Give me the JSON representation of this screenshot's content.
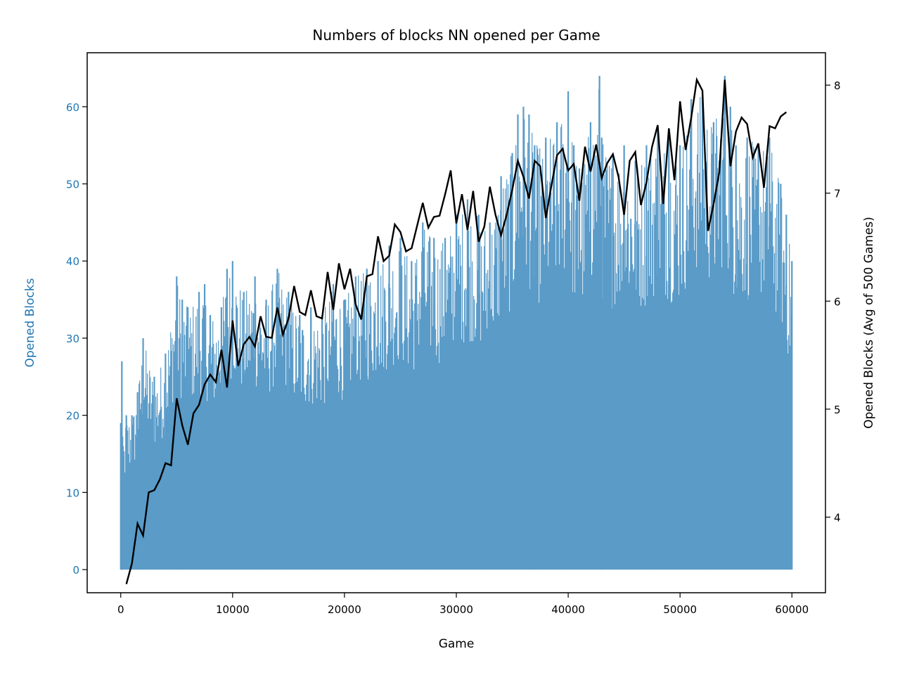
{
  "chart_data": {
    "type": "line",
    "title": "Numbers of blocks NN opened per Game",
    "xlabel": "Game",
    "ylabel_left": "Opened Blocks",
    "ylabel_right": "Opened Blocks (Avg of 500 Games)",
    "xlim": [
      -3000,
      63000
    ],
    "ylim_left": [
      -3,
      67
    ],
    "ylim_right": [
      3.3,
      8.3
    ],
    "xticks": [
      0,
      10000,
      20000,
      30000,
      40000,
      50000,
      60000
    ],
    "yticks_left": [
      0,
      10,
      20,
      30,
      40,
      50,
      60
    ],
    "yticks_right": [
      4,
      5,
      6,
      7,
      8
    ],
    "colors": {
      "per_game": "#1f77b4",
      "per_game_fill": "#5a9bc8",
      "average": "#000000",
      "left_axis_text": "#1f77b4"
    },
    "grid": false,
    "series": [
      {
        "axis": "left",
        "style": "dense-line",
        "note_values": "upper envelope of per-game opened blocks, min 0",
        "x": [
          0,
          100,
          200,
          500,
          1000,
          1500,
          2000,
          3000,
          4000,
          5000,
          5500,
          6000,
          7000,
          7500,
          8000,
          9000,
          9500,
          10000,
          11000,
          12000,
          13000,
          14000,
          15000,
          16000,
          17000,
          18000,
          19000,
          20000,
          21000,
          22000,
          23000,
          24000,
          25000,
          26000,
          27000,
          28000,
          29000,
          30000,
          31000,
          32000,
          33000,
          34000,
          35000,
          35500,
          36000,
          36500,
          37000,
          38000,
          39000,
          40000,
          40500,
          41000,
          42000,
          42800,
          43000,
          44000,
          45000,
          46000,
          47000,
          48000,
          49000,
          50000,
          51000,
          52000,
          53000,
          54000,
          54500,
          55000,
          56000,
          57000,
          58000,
          59000,
          59500,
          60000
        ],
        "values": [
          19,
          27,
          16,
          20,
          20,
          23,
          30,
          25,
          28,
          38,
          35,
          34,
          36,
          37,
          33,
          34,
          39,
          40,
          36,
          38,
          35,
          39,
          36,
          33,
          34,
          33,
          37,
          35,
          38,
          39,
          40,
          42,
          43,
          40,
          45,
          43,
          43,
          46,
          48,
          46,
          45,
          51,
          54,
          59,
          60,
          59,
          55,
          56,
          58,
          62,
          55,
          52,
          58,
          64,
          56,
          54,
          55,
          53,
          55,
          57,
          56,
          55,
          61,
          62,
          58,
          64,
          60,
          55,
          56,
          55,
          56,
          50,
          46,
          40
        ]
      },
      {
        "axis": "right",
        "name": "Opened Blocks (Avg of 500 Games)",
        "x": [
          500,
          1000,
          1500,
          2000,
          2500,
          3000,
          3500,
          4000,
          4500,
          5000,
          5500,
          6000,
          6500,
          7000,
          7500,
          8000,
          8500,
          9000,
          9500,
          10000,
          10500,
          11000,
          11500,
          12000,
          12500,
          13000,
          13500,
          14000,
          14500,
          15000,
          15500,
          16000,
          16500,
          17000,
          17500,
          18000,
          18500,
          19000,
          19500,
          20000,
          20500,
          21000,
          21500,
          22000,
          22500,
          23000,
          23500,
          24000,
          24500,
          25000,
          25500,
          26000,
          26500,
          27000,
          27500,
          28000,
          28500,
          29000,
          29500,
          30000,
          30500,
          31000,
          31500,
          32000,
          32500,
          33000,
          33500,
          34000,
          34500,
          35000,
          35500,
          36000,
          36500,
          37000,
          37500,
          38000,
          38500,
          39000,
          39500,
          40000,
          40500,
          41000,
          41500,
          42000,
          42500,
          43000,
          43500,
          44000,
          44500,
          45000,
          45500,
          46000,
          46500,
          47000,
          47500,
          48000,
          48500,
          49000,
          49500,
          50000,
          50500,
          51000,
          51500,
          52000,
          52500,
          53000,
          53500,
          54000,
          54500,
          55000,
          55500,
          56000,
          56500,
          57000,
          57500,
          58000,
          58500,
          59000,
          59500
        ],
        "values": [
          3.38,
          3.57,
          3.94,
          3.83,
          4.23,
          4.25,
          4.35,
          4.5,
          4.48,
          5.1,
          4.85,
          4.67,
          4.96,
          5.04,
          5.23,
          5.32,
          5.25,
          5.55,
          5.2,
          5.82,
          5.4,
          5.6,
          5.67,
          5.58,
          5.86,
          5.67,
          5.66,
          5.94,
          5.69,
          5.84,
          6.14,
          5.9,
          5.87,
          6.1,
          5.86,
          5.84,
          6.27,
          5.92,
          6.35,
          6.11,
          6.3,
          5.97,
          5.83,
          6.23,
          6.25,
          6.6,
          6.37,
          6.42,
          6.71,
          6.64,
          6.46,
          6.49,
          6.7,
          6.91,
          6.68,
          6.78,
          6.79,
          6.99,
          7.21,
          6.72,
          6.99,
          6.66,
          7.02,
          6.55,
          6.69,
          7.06,
          6.8,
          6.61,
          6.8,
          7.03,
          7.3,
          7.15,
          6.95,
          7.3,
          7.25,
          6.77,
          7.07,
          7.35,
          7.41,
          7.21,
          7.27,
          6.93,
          7.43,
          7.2,
          7.45,
          7.14,
          7.28,
          7.36,
          7.15,
          6.8,
          7.3,
          7.38,
          6.89,
          7.1,
          7.43,
          7.63,
          6.9,
          7.6,
          7.12,
          7.85,
          7.4,
          7.7,
          8.05,
          7.95,
          6.65,
          6.9,
          7.19,
          8.05,
          7.25,
          7.57,
          7.7,
          7.64,
          7.33,
          7.46,
          7.05,
          7.62,
          7.6,
          7.71,
          7.75
        ]
      }
    ]
  }
}
